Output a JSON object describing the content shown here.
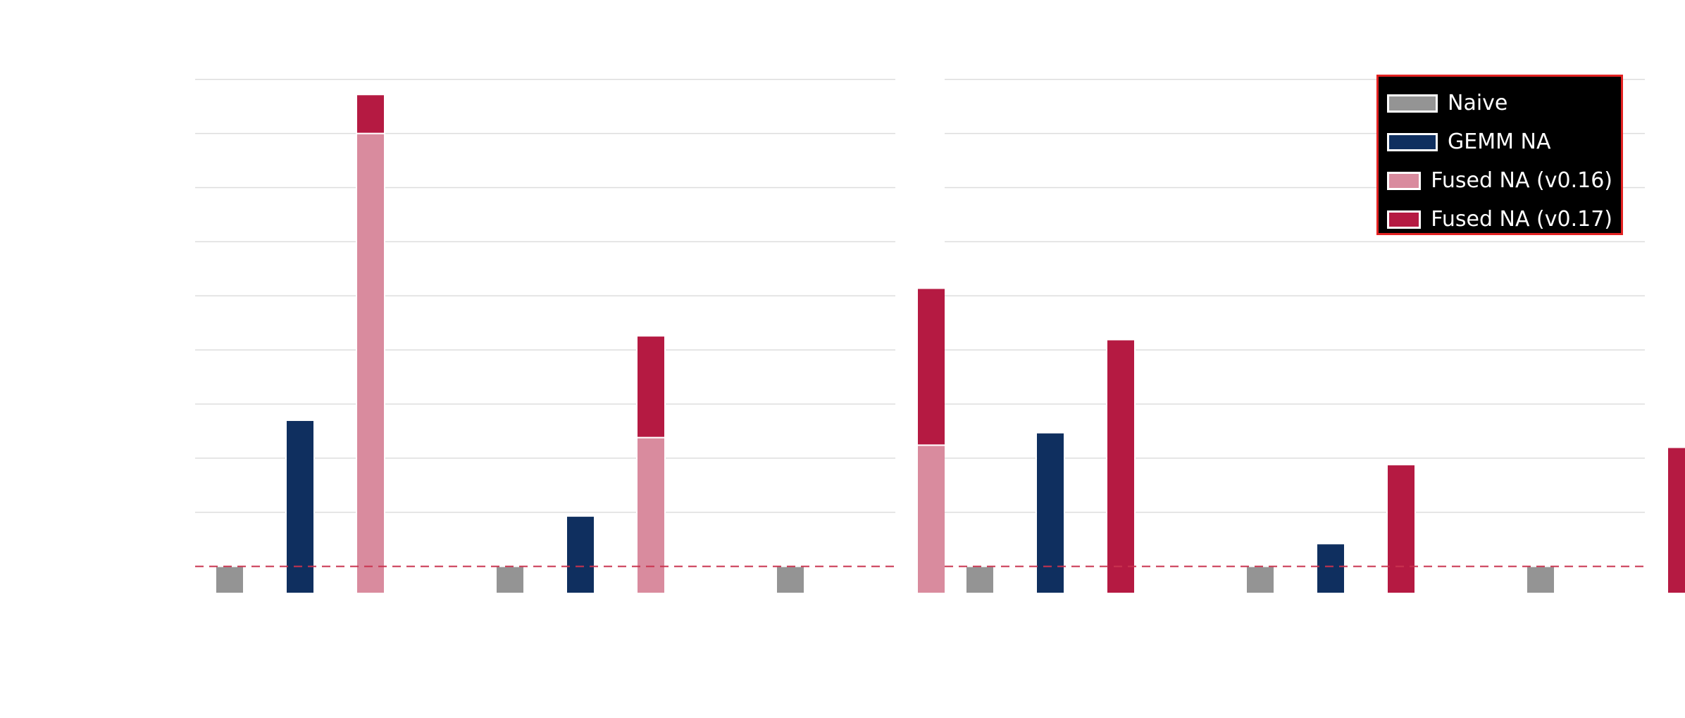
{
  "legend": {
    "items": [
      {
        "label": "Naive",
        "color": "#949494"
      },
      {
        "label": "GEMM NA",
        "color": "#0f2f5f"
      },
      {
        "label": "Fused NA (v0.16)",
        "color": "#d98b9e"
      },
      {
        "label": "Fused NA (v0.17)",
        "color": "#b51a42"
      }
    ]
  },
  "colors": {
    "naive": "#949494",
    "gemm": "#0f2f5f",
    "fused_v016": "#d98b9e",
    "fused_v017": "#b51a42",
    "baseline": "#c9334f",
    "grid": "#dddddd"
  },
  "chart_data": [
    {
      "type": "bar",
      "stacked_last": true,
      "baseline_dashed": 0,
      "ylim": [
        -0.5,
        9.4
      ],
      "yticks": [
        0,
        1,
        2,
        3,
        4,
        5,
        6,
        7,
        8,
        9
      ],
      "groups": [
        {
          "naive": 0.5,
          "gemm": 3.2,
          "fused_v016": 8.5,
          "fused_v017": 0.72
        },
        {
          "naive": 0.5,
          "gemm": 1.43,
          "fused_v016": 2.88,
          "fused_v017": 1.88
        },
        {
          "naive": 0.5,
          "gemm": null,
          "fused_v016": 2.74,
          "fused_v017": 2.9
        }
      ]
    },
    {
      "type": "bar",
      "stacked_last": false,
      "baseline_dashed": 0,
      "ylim": [
        -0.5,
        9.4
      ],
      "yticks": [
        0,
        1,
        2,
        3,
        4,
        5,
        6,
        7,
        8,
        9
      ],
      "groups": [
        {
          "naive": 0.5,
          "gemm": 2.97,
          "fused_v017": 4.69
        },
        {
          "naive": 0.5,
          "gemm": 0.92,
          "fused_v017": 2.38
        },
        {
          "naive": 0.5,
          "gemm": null,
          "fused_v017": 2.7
        }
      ]
    }
  ]
}
